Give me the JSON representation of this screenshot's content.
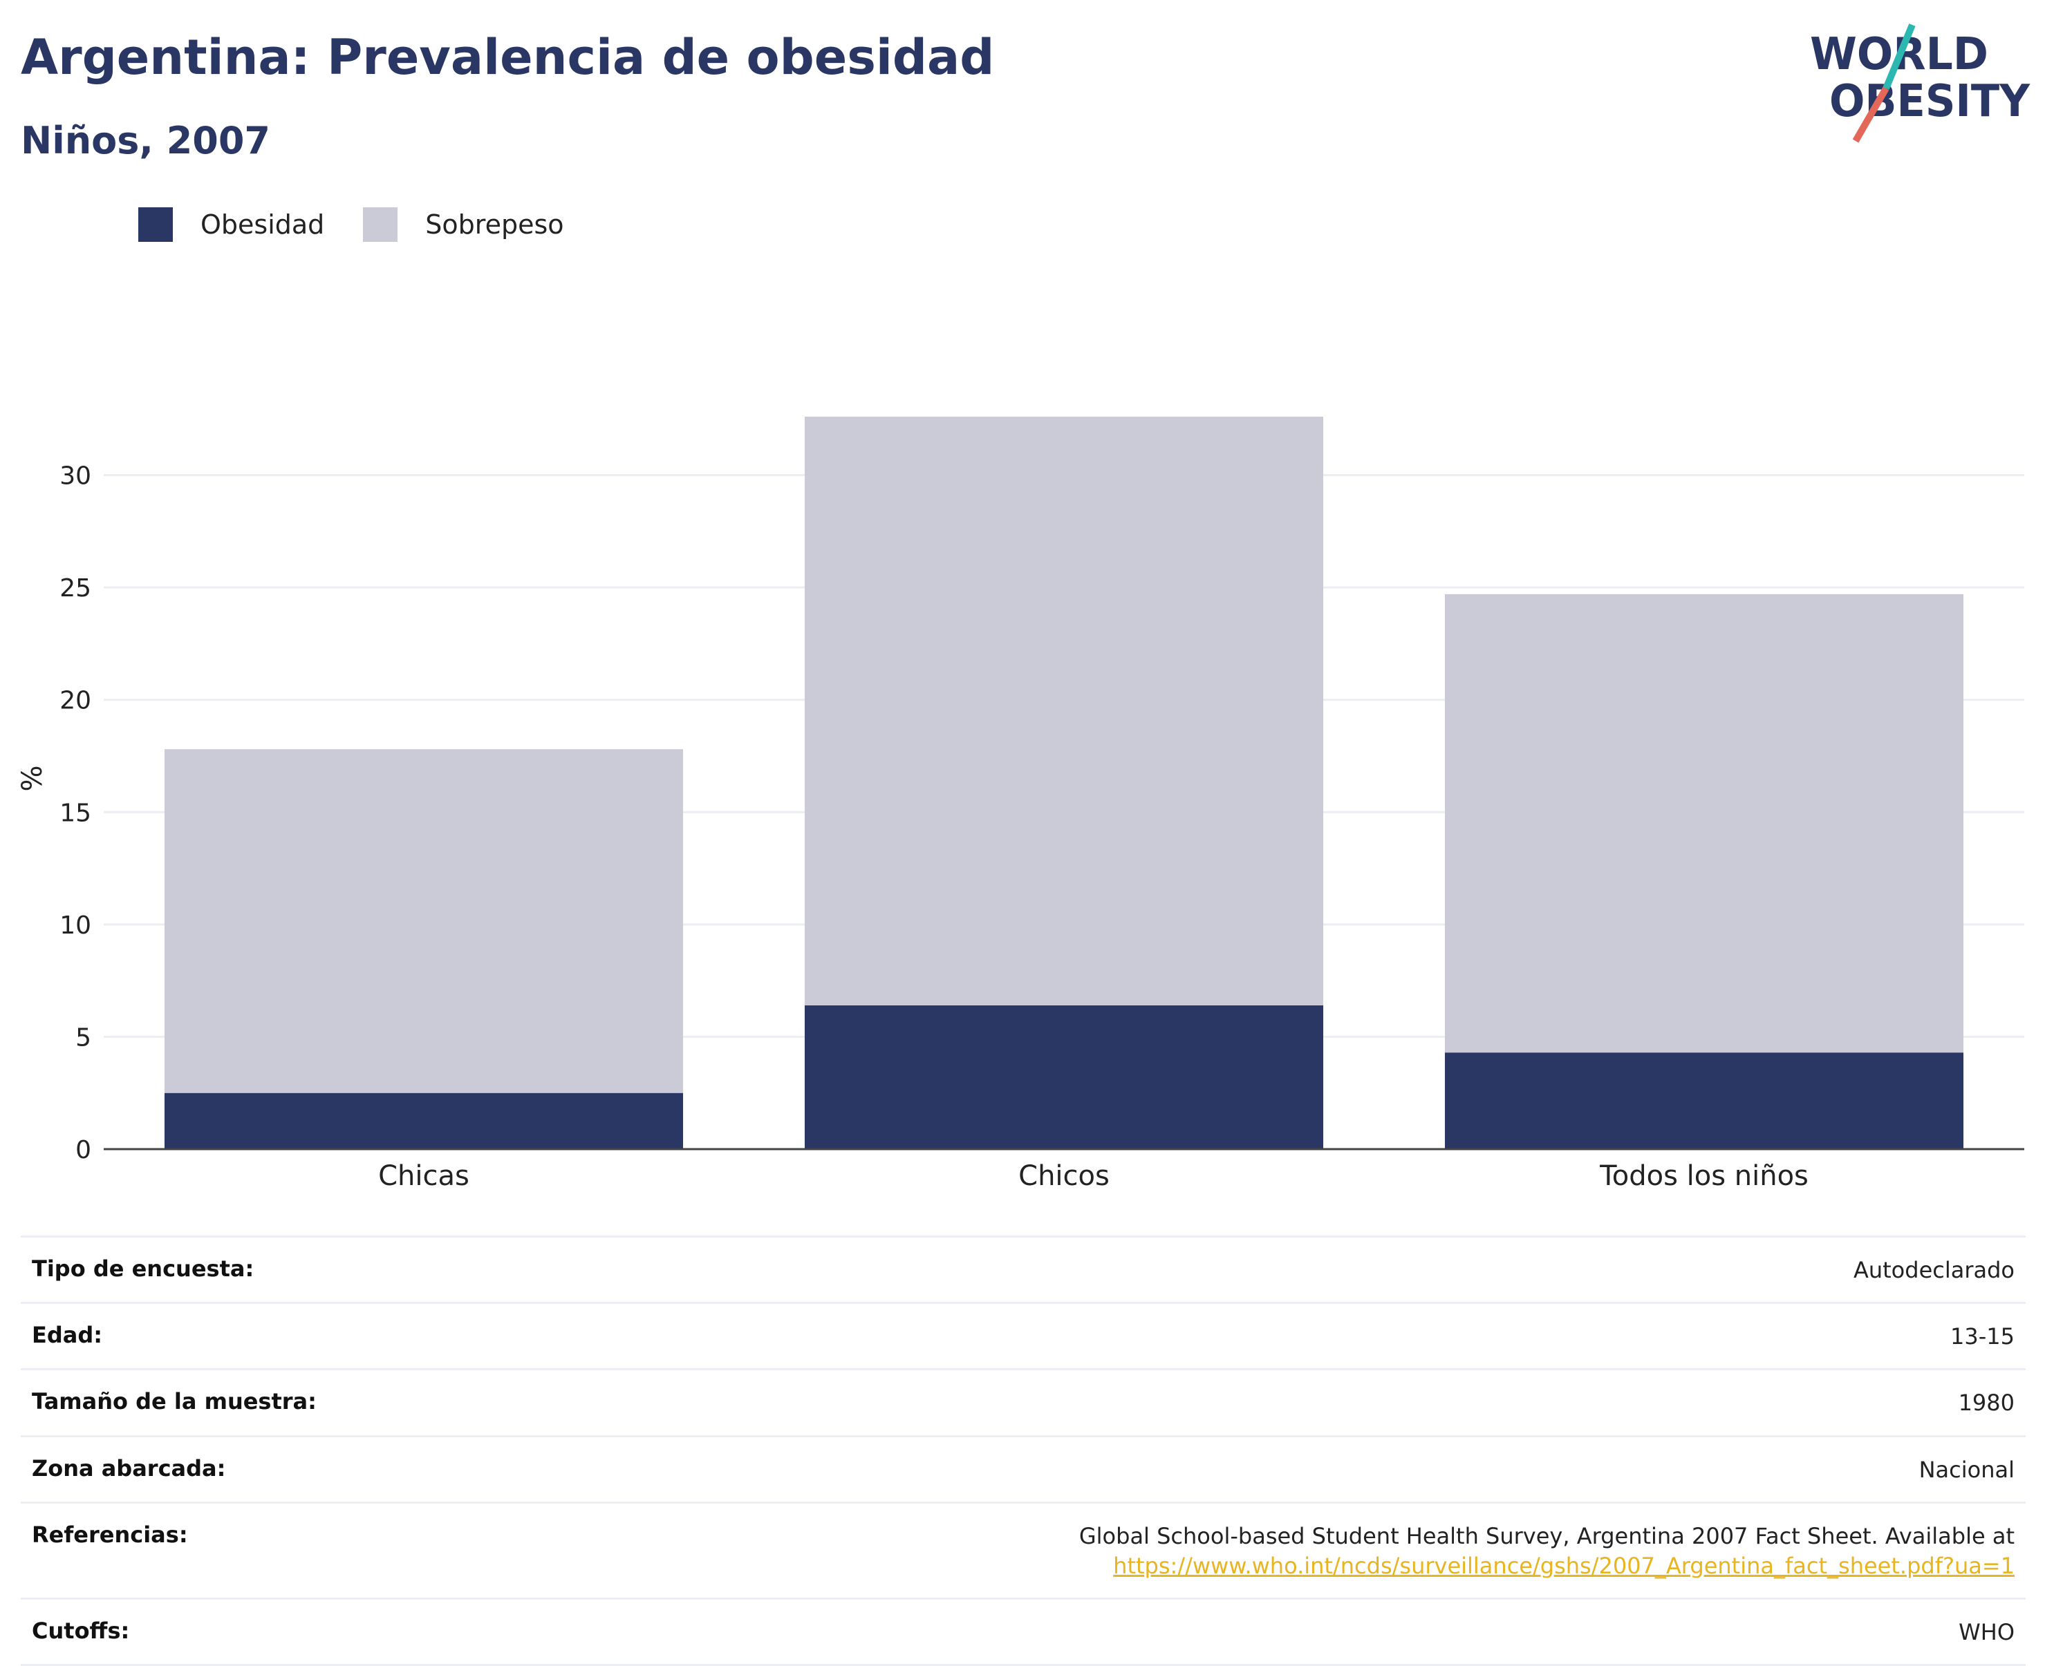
{
  "header": {
    "title": "Argentina: Prevalencia de obesidad",
    "subtitle": "Niños, 2007"
  },
  "logo": {
    "line1": "WORLD",
    "line2": "OBESITY"
  },
  "colors": {
    "obesity": "#2a3663",
    "overweight": "#cacbd7",
    "accent_teal": "#2cb7b0",
    "accent_red": "#e4685a",
    "link": "#e8b420"
  },
  "chart_data": {
    "type": "bar",
    "stacked": true,
    "categories": [
      "Chicas",
      "Chicos",
      "Todos los niños"
    ],
    "series": [
      {
        "name": "Obesidad",
        "values": [
          2.5,
          6.4,
          4.3
        ]
      },
      {
        "name": "Sobrepeso",
        "values": [
          15.3,
          26.2,
          20.4
        ]
      }
    ],
    "ylabel": "%",
    "ylim": [
      0,
      33
    ],
    "yticks": [
      0,
      5,
      10,
      15,
      20,
      25,
      30
    ],
    "grid": true,
    "legend": "top-left"
  },
  "info": [
    {
      "label": "Tipo de encuesta:",
      "value": "Autodeclarado"
    },
    {
      "label": "Edad:",
      "value": "13-15"
    },
    {
      "label": "Tamaño de la muestra:",
      "value": "1980"
    },
    {
      "label": "Zona abarcada:",
      "value": "Nacional"
    },
    {
      "label": "Referencias:",
      "value": "Global School-based Student Health Survey, Argentina 2007 Fact Sheet. Available at",
      "link": "https://www.who.int/ncds/surveillance/gshs/2007_Argentina_fact_sheet.pdf?ua=1"
    },
    {
      "label": "Cutoffs:",
      "value": "WHO"
    }
  ]
}
